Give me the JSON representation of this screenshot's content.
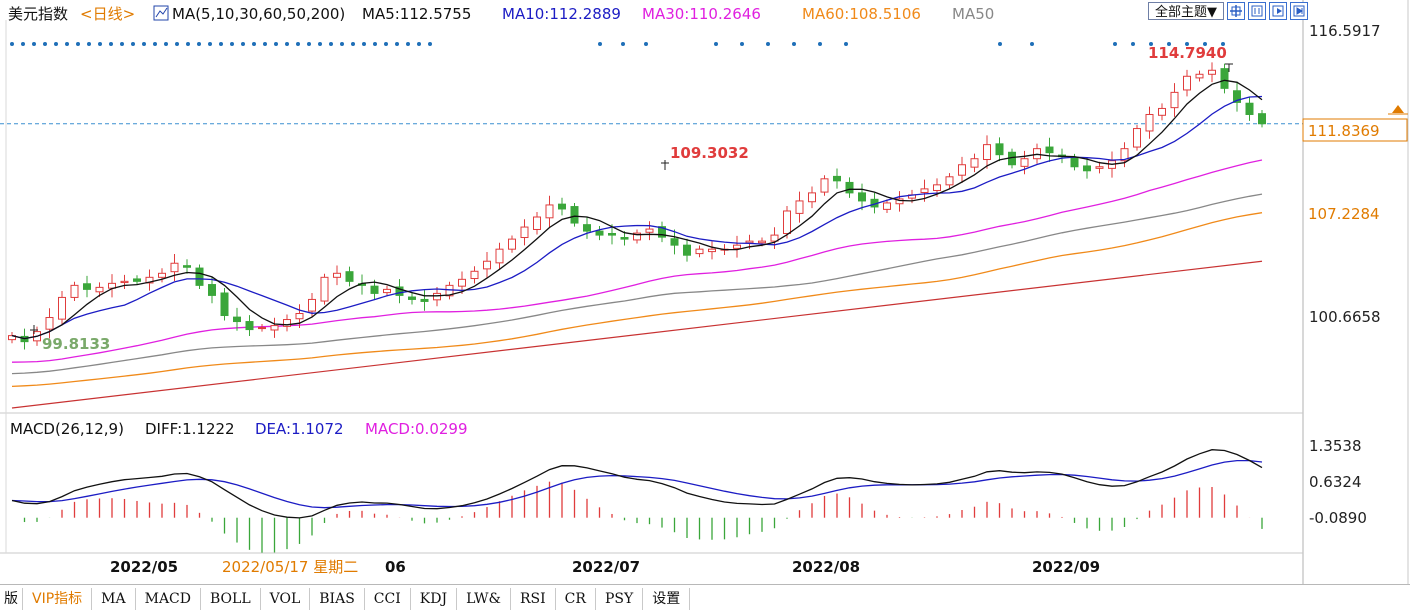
{
  "header": {
    "symbol": "美元指数",
    "period": "<日线>",
    "ma_title": "MA(5,10,30,60,50,200)",
    "ma_values": [
      {
        "label": "MA5:112.5755",
        "color": "#111111"
      },
      {
        "label": "MA10:112.2889",
        "color": "#1c1cc4"
      },
      {
        "label": "MA30:110.2646",
        "color": "#e020e0"
      },
      {
        "label": "MA60:108.5106",
        "color": "#f08a1a"
      },
      {
        "label": "MA50",
        "color": "#888888"
      }
    ],
    "theme_button": "全部主题▼"
  },
  "price_axis": {
    "ticks": [
      "116.5917",
      "100.6658"
    ],
    "current_price": "111.8369",
    "marker_price": "107.2284",
    "current_value": 111.8369,
    "marker_value": 107.2284,
    "ylim": [
      97.6,
      117.0
    ]
  },
  "annotations": {
    "high_label": "114.7940",
    "mid_high_label": "109.3032",
    "low_label": "99.8133"
  },
  "macd": {
    "title": "MACD(26,12,9)",
    "diff_label": "DIFF:1.1222",
    "dea_label": "DEA:1.1072",
    "macd_label": "MACD:0.0299",
    "ticks": [
      "1.3538",
      "0.6324",
      "-0.0890"
    ],
    "ylim": [
      -0.75,
      1.7
    ]
  },
  "time_axis": {
    "labels": [
      "2022/05",
      "2022/07",
      "2022/08",
      "2022/09"
    ],
    "tooltip_date": "2022/05/17 星期二",
    "partial_label": "06"
  },
  "tabs": [
    "版",
    "VIP指标",
    "MA",
    "MACD",
    "BOLL",
    "VOL",
    "BIAS",
    "CCI",
    "KDJ",
    "LW&",
    "RSI",
    "CR",
    "PSY",
    "设置"
  ],
  "colors": {
    "up": "#e03c3c",
    "down": "#3aa63a",
    "ma5": "#111111",
    "ma10": "#1c1cc4",
    "ma30": "#e020e0",
    "ma60": "#f08a1a",
    "ma50": "#888888",
    "ma200": "#c83232",
    "dots": "#1f6fb8",
    "accent": "#e07b00"
  },
  "chart_data": {
    "type": "candlestick",
    "x_start": "2022-04-25",
    "x_end": "2022-09-30",
    "ylim": [
      97.6,
      117.0
    ],
    "close": [
      101.3,
      101.0,
      101.5,
      102.2,
      103.2,
      103.8,
      103.6,
      103.7,
      103.9,
      104.0,
      104.0,
      104.2,
      104.4,
      104.9,
      104.7,
      103.8,
      103.3,
      102.3,
      102.0,
      101.6,
      101.7,
      101.8,
      102.1,
      102.4,
      103.1,
      104.2,
      104.4,
      104.0,
      103.8,
      103.4,
      103.6,
      103.3,
      103.1,
      103.0,
      103.4,
      103.8,
      104.1,
      104.5,
      105.0,
      105.6,
      106.1,
      106.7,
      107.2,
      107.8,
      107.6,
      106.9,
      106.5,
      106.3,
      106.3,
      106.1,
      106.4,
      106.6,
      106.2,
      105.8,
      105.3,
      105.6,
      105.6,
      105.6,
      105.8,
      106.0,
      106.0,
      106.3,
      107.5,
      108.0,
      108.4,
      109.1,
      109.0,
      108.4,
      108.0,
      107.7,
      107.9,
      108.1,
      108.3,
      108.6,
      108.8,
      109.2,
      109.8,
      110.1,
      110.8,
      110.3,
      109.8,
      110.1,
      110.6,
      110.4,
      110.2,
      109.7,
      109.5,
      109.7,
      110.0,
      110.6,
      111.6,
      112.3,
      112.6,
      113.4,
      114.2,
      114.3,
      114.5,
      113.6,
      112.9,
      112.3,
      111.84
    ],
    "volume_note": "",
    "ma200_start": 97.7,
    "ma200_end": 105.0
  }
}
